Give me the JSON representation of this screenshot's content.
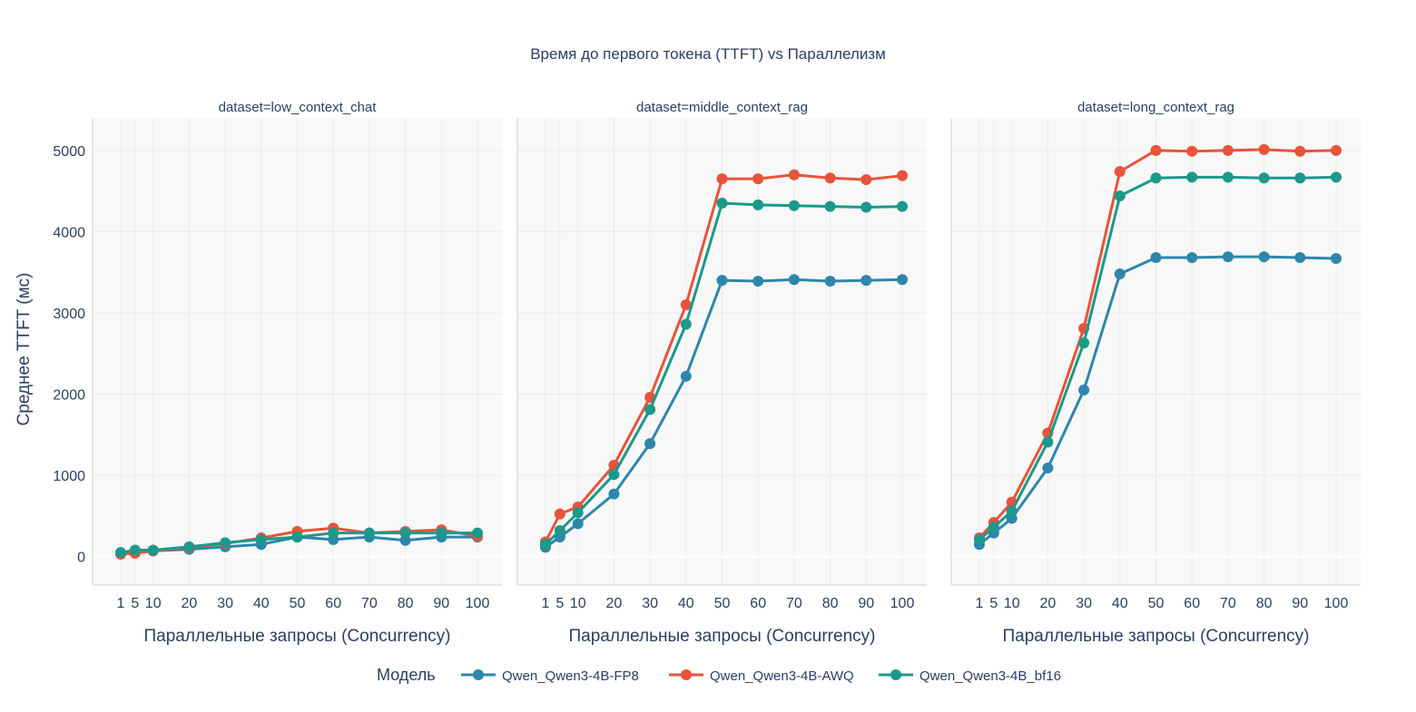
{
  "chart_data": {
    "type": "line",
    "title": "Время до первого токена (TTFT) vs Параллелизм",
    "ylabel": "Среднее TTFT (мс)",
    "xlabel": "Параллельные запросы (Concurrency)",
    "x": [
      1,
      5,
      10,
      20,
      30,
      40,
      50,
      60,
      70,
      80,
      90,
      100
    ],
    "x_ticks": [
      "1",
      "5",
      "10",
      "20",
      "30",
      "40",
      "50",
      "60",
      "70",
      "80",
      "90",
      "100"
    ],
    "y_ticks": [
      "0",
      "1000",
      "2000",
      "3000",
      "4000",
      "5000"
    ],
    "ylim": [
      -350,
      5400
    ],
    "xlim": [
      -6.8,
      106.8
    ],
    "grid": true,
    "legend": {
      "title": "Модель",
      "placement": "bottom"
    },
    "colors": {
      "Qwen_Qwen3-4B-FP8": "#2e86ab",
      "Qwen_Qwen3-4B-AWQ": "#e8533a",
      "Qwen_Qwen3-4B_bf16": "#1b998b"
    },
    "series_names": [
      "Qwen_Qwen3-4B-FP8",
      "Qwen_Qwen3-4B-AWQ",
      "Qwen_Qwen3-4B_bf16"
    ],
    "panels": [
      {
        "label": "dataset=low_context_chat",
        "series": [
          {
            "name": "Qwen_Qwen3-4B-FP8",
            "values": [
              40,
              70,
              70,
              90,
              120,
              150,
              240,
              210,
              240,
              200,
              240,
              240
            ]
          },
          {
            "name": "Qwen_Qwen3-4B-AWQ",
            "values": [
              30,
              40,
              70,
              110,
              160,
              230,
              310,
              350,
              290,
              310,
              330,
              250
            ]
          },
          {
            "name": "Qwen_Qwen3-4B_bf16",
            "values": [
              50,
              80,
              80,
              120,
              170,
              210,
              240,
              290,
              290,
              290,
              290,
              290
            ]
          }
        ]
      },
      {
        "label": "dataset=middle_context_rag",
        "series": [
          {
            "name": "Qwen_Qwen3-4B-FP8",
            "values": [
              115,
              240,
              405,
              770,
              1390,
              2220,
              3400,
              3390,
              3410,
              3390,
              3400,
              3410
            ]
          },
          {
            "name": "Qwen_Qwen3-4B-AWQ",
            "values": [
              180,
              525,
              610,
              1125,
              1960,
              3100,
              4650,
              4650,
              4700,
              4660,
              4640,
              4690
            ]
          },
          {
            "name": "Qwen_Qwen3-4B_bf16",
            "values": [
              150,
              320,
              540,
              1010,
              1810,
              2860,
              4350,
              4330,
              4320,
              4310,
              4300,
              4310
            ]
          }
        ]
      },
      {
        "label": "dataset=long_context_rag",
        "series": [
          {
            "name": "Qwen_Qwen3-4B-FP8",
            "values": [
              150,
              290,
              470,
              1090,
              2050,
              3480,
              3680,
              3680,
              3690,
              3690,
              3680,
              3670
            ]
          },
          {
            "name": "Qwen_Qwen3-4B-AWQ",
            "values": [
              230,
              420,
              670,
              1520,
              2810,
              4740,
              5000,
              4990,
              5000,
              5010,
              4990,
              5000
            ]
          },
          {
            "name": "Qwen_Qwen3-4B_bf16",
            "values": [
              210,
              360,
              560,
              1410,
              2630,
              4440,
              4660,
              4670,
              4670,
              4660,
              4660,
              4670
            ]
          }
        ]
      }
    ]
  }
}
